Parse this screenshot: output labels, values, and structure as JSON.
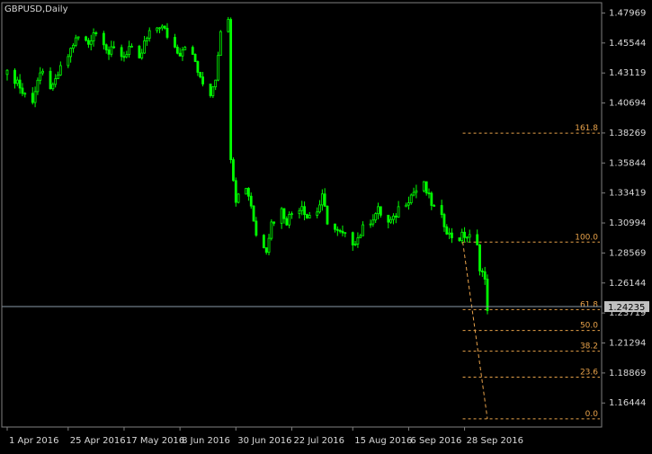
{
  "chart_data": {
    "type": "candlestick",
    "title": "GBPUSD,Daily",
    "y_ticks": [
      "1.47969",
      "1.45544",
      "1.43119",
      "1.40694",
      "1.38269",
      "1.35844",
      "1.33419",
      "1.30994",
      "1.28569",
      "1.26144",
      "1.23719",
      "1.21294",
      "1.18869",
      "1.16444"
    ],
    "x_ticks": [
      "1 Apr 2016",
      "25 Apr 2016",
      "17 May 2016",
      "8 Jun 2016",
      "30 Jun 2016",
      "22 Jul 2016",
      "15 Aug 2016",
      "6 Sep 2016",
      "28 Sep 2016"
    ],
    "current_price": "1.24235",
    "fibonacci": {
      "levels": [
        {
          "label": "161.8",
          "value": 1.3825
        },
        {
          "label": "100.0",
          "value": 1.2945
        },
        {
          "label": "61.8",
          "value": 1.2399
        },
        {
          "label": "50.0",
          "value": 1.223
        },
        {
          "label": "38.2",
          "value": 1.2063
        },
        {
          "label": "23.6",
          "value": 1.1853
        },
        {
          "label": "0.0",
          "value": 1.1516
        }
      ],
      "trend_from": 1.2945,
      "trend_to": 1.1516
    },
    "series": [
      {
        "date": "2016-04-01",
        "close": 1.43
      },
      {
        "date": "2016-04-05",
        "close": 1.425
      },
      {
        "date": "2016-04-07",
        "close": 1.415
      },
      {
        "date": "2016-04-11",
        "close": 1.41
      },
      {
        "date": "2016-04-13",
        "close": 1.425
      },
      {
        "date": "2016-04-15",
        "close": 1.43
      },
      {
        "date": "2016-04-19",
        "close": 1.418
      },
      {
        "date": "2016-04-21",
        "close": 1.43
      },
      {
        "date": "2016-04-25",
        "close": 1.445
      },
      {
        "date": "2016-04-27",
        "close": 1.455
      },
      {
        "date": "2016-04-29",
        "close": 1.46
      },
      {
        "date": "2016-05-03",
        "close": 1.455
      },
      {
        "date": "2016-05-05",
        "close": 1.465
      },
      {
        "date": "2016-05-09",
        "close": 1.458
      },
      {
        "date": "2016-05-11",
        "close": 1.447
      },
      {
        "date": "2016-05-13",
        "close": 1.45
      },
      {
        "date": "2016-05-17",
        "close": 1.445
      },
      {
        "date": "2016-05-19",
        "close": 1.452
      },
      {
        "date": "2016-05-23",
        "close": 1.44
      },
      {
        "date": "2016-05-25",
        "close": 1.455
      },
      {
        "date": "2016-05-27",
        "close": 1.462
      },
      {
        "date": "2016-05-31",
        "close": 1.47
      },
      {
        "date": "2016-06-02",
        "close": 1.465
      },
      {
        "date": "2016-06-06",
        "close": 1.452
      },
      {
        "date": "2016-06-08",
        "close": 1.448
      },
      {
        "date": "2016-06-10",
        "close": 1.455
      },
      {
        "date": "2016-06-14",
        "close": 1.44
      },
      {
        "date": "2016-06-16",
        "close": 1.425
      },
      {
        "date": "2016-06-20",
        "close": 1.415
      },
      {
        "date": "2016-06-22",
        "close": 1.428
      },
      {
        "date": "2016-06-24",
        "close": 1.468
      },
      {
        "date": "2016-06-27",
        "close": 1.472
      },
      {
        "date": "2016-06-28",
        "close": 1.365
      },
      {
        "date": "2016-06-30",
        "close": 1.33
      },
      {
        "date": "2016-07-04",
        "close": 1.34
      },
      {
        "date": "2016-07-06",
        "close": 1.325
      },
      {
        "date": "2016-07-08",
        "close": 1.3
      },
      {
        "date": "2016-07-12",
        "close": 1.29
      },
      {
        "date": "2016-07-14",
        "close": 1.31
      },
      {
        "date": "2016-07-18",
        "close": 1.32
      },
      {
        "date": "2016-07-20",
        "close": 1.312
      },
      {
        "date": "2016-07-22",
        "close": 1.318
      },
      {
        "date": "2016-07-26",
        "close": 1.325
      },
      {
        "date": "2016-07-28",
        "close": 1.315
      },
      {
        "date": "2016-08-01",
        "close": 1.32
      },
      {
        "date": "2016-08-03",
        "close": 1.33
      },
      {
        "date": "2016-08-05",
        "close": 1.312
      },
      {
        "date": "2016-08-09",
        "close": 1.302
      },
      {
        "date": "2016-08-11",
        "close": 1.3
      },
      {
        "date": "2016-08-15",
        "close": 1.295
      },
      {
        "date": "2016-08-17",
        "close": 1.298
      },
      {
        "date": "2016-08-19",
        "close": 1.305
      },
      {
        "date": "2016-08-23",
        "close": 1.315
      },
      {
        "date": "2016-08-25",
        "close": 1.32
      },
      {
        "date": "2016-08-29",
        "close": 1.31
      },
      {
        "date": "2016-08-31",
        "close": 1.312
      },
      {
        "date": "2016-09-02",
        "close": 1.322
      },
      {
        "date": "2016-09-06",
        "close": 1.33
      },
      {
        "date": "2016-09-08",
        "close": 1.335
      },
      {
        "date": "2016-09-12",
        "close": 1.34
      },
      {
        "date": "2016-09-14",
        "close": 1.33
      },
      {
        "date": "2016-09-16",
        "close": 1.322
      },
      {
        "date": "2016-09-20",
        "close": 1.31
      },
      {
        "date": "2016-09-22",
        "close": 1.3
      },
      {
        "date": "2016-09-26",
        "close": 1.298
      },
      {
        "date": "2016-09-28",
        "close": 1.3
      },
      {
        "date": "2016-09-30",
        "close": 1.298
      },
      {
        "date": "2016-10-03",
        "close": 1.29
      },
      {
        "date": "2016-10-04",
        "close": 1.275
      },
      {
        "date": "2016-10-05",
        "close": 1.27
      },
      {
        "date": "2016-10-06",
        "close": 1.262
      },
      {
        "date": "2016-10-07",
        "close": 1.242
      }
    ]
  }
}
